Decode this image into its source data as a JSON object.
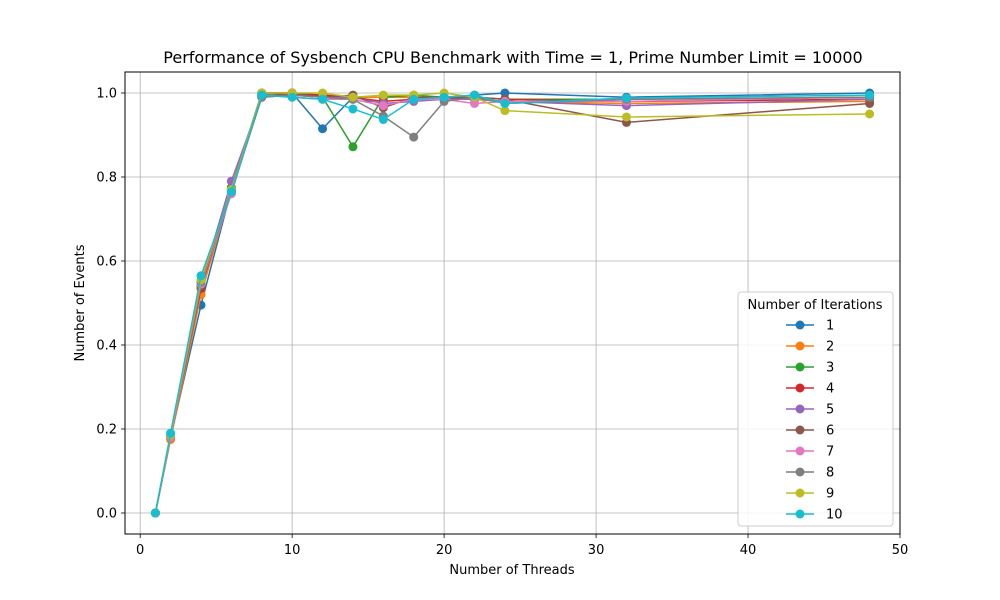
{
  "chart_data": {
    "type": "line",
    "title": "Performance of Sysbench CPU Benchmark with Time = 1, Prime Number Limit = 10000",
    "xlabel": "Number of Threads",
    "ylabel": "Number of Events",
    "xlim": [
      -1,
      50
    ],
    "ylim": [
      -0.05,
      1.05
    ],
    "xticks": [
      0,
      10,
      20,
      30,
      40,
      50
    ],
    "yticks": [
      0.0,
      0.2,
      0.4,
      0.6,
      0.8,
      1.0
    ],
    "xtick_labels": [
      "0",
      "10",
      "20",
      "30",
      "40",
      "50"
    ],
    "ytick_labels": [
      "0.0",
      "0.2",
      "0.4",
      "0.6",
      "0.8",
      "1.0"
    ],
    "grid": true,
    "legend": {
      "title": "Number of Iterations",
      "placement": "lower-right"
    },
    "x": [
      1,
      2,
      4,
      6,
      8,
      10,
      12,
      14,
      16,
      18,
      20,
      22,
      24,
      32,
      48
    ],
    "series": [
      {
        "name": "1",
        "color": "#1f77b4",
        "values": [
          0.0,
          0.18,
          0.495,
          0.77,
          0.995,
          1.0,
          0.915,
          0.99,
          0.99,
          0.99,
          0.99,
          0.995,
          1.0,
          0.99,
          1.0
        ]
      },
      {
        "name": "2",
        "color": "#ff7f0e",
        "values": [
          0.0,
          0.175,
          0.52,
          0.77,
          0.995,
          0.995,
          0.995,
          0.99,
          0.99,
          0.99,
          0.985,
          0.985,
          0.98,
          0.975,
          0.98
        ]
      },
      {
        "name": "3",
        "color": "#2ca02c",
        "values": [
          0.0,
          0.18,
          0.545,
          0.775,
          1.0,
          1.0,
          0.99,
          0.872,
          0.99,
          0.995,
          0.99,
          0.99,
          0.985,
          0.985,
          0.99
        ]
      },
      {
        "name": "4",
        "color": "#d62728",
        "values": [
          0.0,
          0.18,
          0.535,
          0.77,
          1.0,
          1.0,
          0.995,
          0.99,
          0.98,
          0.985,
          0.985,
          0.99,
          0.985,
          0.98,
          0.985
        ]
      },
      {
        "name": "5",
        "color": "#9467bd",
        "values": [
          0.0,
          0.18,
          0.545,
          0.79,
          0.99,
          0.995,
          0.99,
          0.99,
          0.975,
          0.98,
          0.985,
          0.985,
          0.98,
          0.97,
          0.985
        ]
      },
      {
        "name": "6",
        "color": "#8c564b",
        "values": [
          0.0,
          0.18,
          0.54,
          0.765,
          0.99,
          1.0,
          0.99,
          0.995,
          0.965,
          0.99,
          0.99,
          0.99,
          0.985,
          0.93,
          0.975
        ]
      },
      {
        "name": "7",
        "color": "#e377c2",
        "values": [
          0.0,
          0.18,
          0.545,
          0.76,
          0.995,
          0.99,
          0.985,
          0.985,
          0.97,
          0.985,
          0.985,
          0.975,
          0.98,
          0.98,
          0.99
        ]
      },
      {
        "name": "8",
        "color": "#7f7f7f",
        "values": [
          0.0,
          0.185,
          0.55,
          0.765,
          0.99,
          0.995,
          0.99,
          0.985,
          0.945,
          0.895,
          0.98,
          0.99,
          0.975,
          0.985,
          0.99
        ]
      },
      {
        "name": "9",
        "color": "#bcbd22",
        "values": [
          0.0,
          0.185,
          0.555,
          0.77,
          1.0,
          1.0,
          1.0,
          0.99,
          0.995,
          0.995,
          1.0,
          0.99,
          0.958,
          0.943,
          0.95
        ]
      },
      {
        "name": "10",
        "color": "#17becf",
        "values": [
          0.0,
          0.19,
          0.565,
          0.765,
          0.995,
          0.99,
          0.985,
          0.962,
          0.937,
          0.985,
          0.99,
          0.995,
          0.975,
          0.988,
          0.995
        ]
      }
    ]
  }
}
